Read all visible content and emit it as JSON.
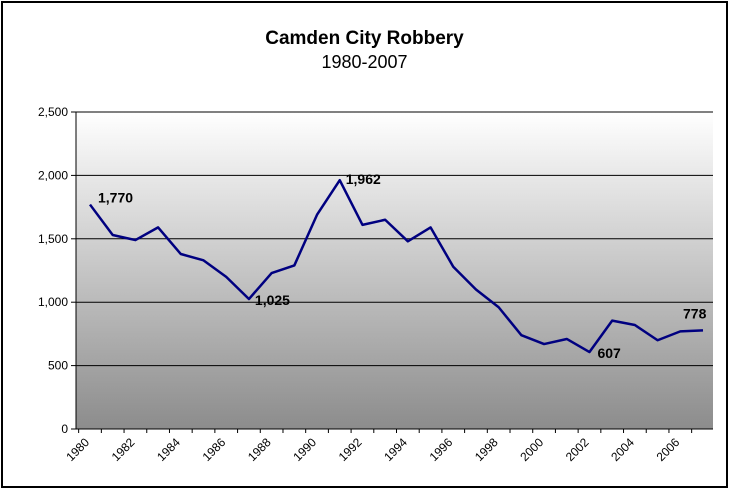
{
  "chart_data": {
    "type": "line",
    "title": "Camden City Robbery",
    "subtitle": "1980-2007",
    "xlabel": "",
    "ylabel": "",
    "x": [
      1980,
      1981,
      1982,
      1983,
      1984,
      1985,
      1986,
      1987,
      1988,
      1989,
      1990,
      1991,
      1992,
      1993,
      1994,
      1995,
      1996,
      1997,
      1998,
      1999,
      2000,
      2001,
      2002,
      2003,
      2004,
      2005,
      2006,
      2007
    ],
    "x_tick_labels": [
      "1980",
      "1982",
      "1984",
      "1986",
      "1988",
      "1990",
      "1992",
      "1994",
      "1996",
      "1998",
      "2000",
      "2002",
      "2004",
      "2006"
    ],
    "y_tick_labels": [
      "0",
      "500",
      "1,000",
      "1,500",
      "2,000",
      "2,500"
    ],
    "ylim": [
      0,
      2500
    ],
    "grid": true,
    "legend": "none",
    "series": [
      {
        "values": [
          1770,
          1530,
          1490,
          1590,
          1380,
          1330,
          1200,
          1025,
          1230,
          1290,
          1690,
          1962,
          1610,
          1650,
          1480,
          1590,
          1280,
          1100,
          960,
          740,
          670,
          710,
          607,
          855,
          820,
          700,
          770,
          778
        ]
      }
    ],
    "data_labels": [
      {
        "index": 0,
        "text": "1,770"
      },
      {
        "index": 11,
        "text": "1,962"
      },
      {
        "index": 7,
        "text": "1,025"
      },
      {
        "index": 22,
        "text": "607"
      },
      {
        "index": 27,
        "text": "778"
      }
    ],
    "colors": {
      "line": "#000080",
      "plot_gradient_top": "#ffffff",
      "plot_gradient_bottom": "#8c8c8c",
      "gridline": "#000000"
    }
  }
}
